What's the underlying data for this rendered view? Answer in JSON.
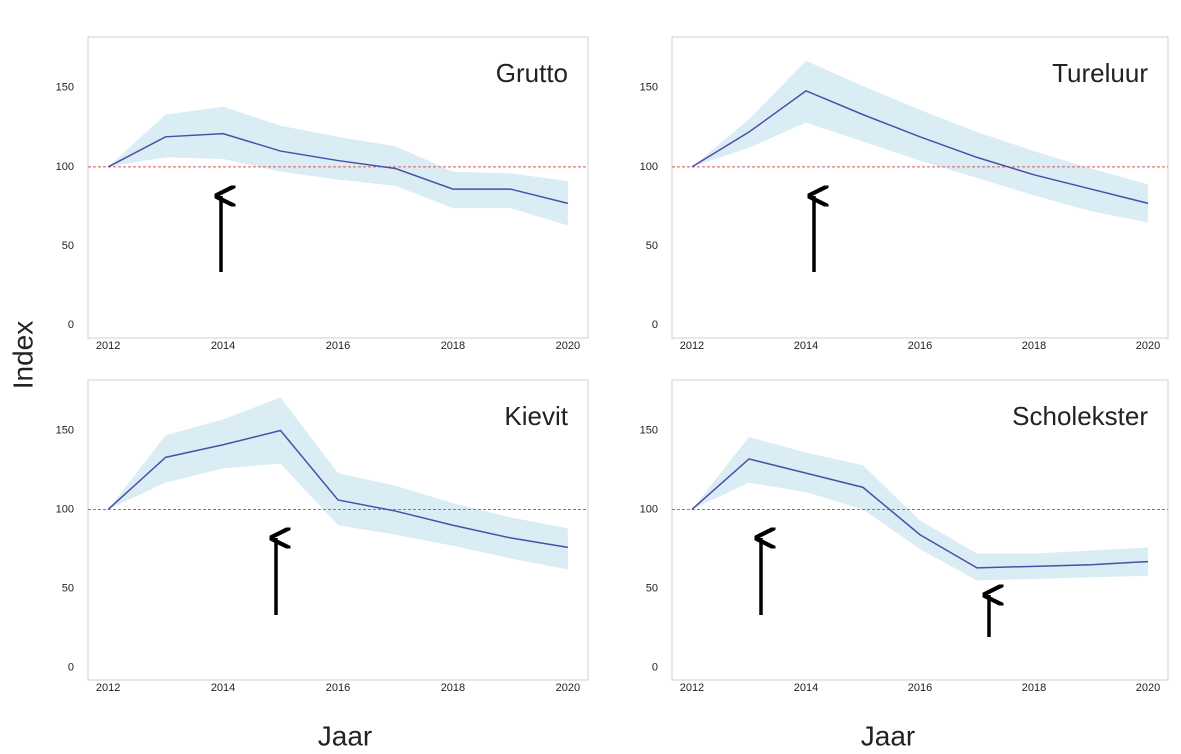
{
  "ylabel": "Index",
  "chart_data": [
    {
      "type": "line",
      "title": "Grutto",
      "x": [
        2012,
        2013,
        2014,
        2015,
        2016,
        2017,
        2018,
        2019,
        2020
      ],
      "values": [
        100,
        119,
        121,
        110,
        104,
        99,
        86,
        86,
        77
      ],
      "upper": [
        100,
        133,
        138,
        126,
        119,
        113,
        97,
        96,
        91
      ],
      "lower": [
        100,
        106,
        105,
        97,
        92,
        88,
        74,
        74,
        63
      ],
      "color": "#4b4fa8",
      "band_color": "#daedf5",
      "reference_line": 100,
      "reference_color": "#e05555",
      "xlim": [
        2011.65,
        2020.35
      ],
      "ylim": [
        -8,
        182
      ],
      "xticks": [
        2012,
        2014,
        2016,
        2018,
        2020
      ],
      "yticks": [
        0,
        50,
        100,
        150
      ]
    },
    {
      "type": "line",
      "title": "Tureluur",
      "x": [
        2012,
        2013,
        2014,
        2015,
        2016,
        2017,
        2018,
        2019,
        2020
      ],
      "values": [
        100,
        122,
        148,
        133,
        119,
        106,
        95,
        86,
        77
      ],
      "upper": [
        100,
        130,
        167,
        151,
        136,
        122,
        110,
        99,
        89
      ],
      "lower": [
        100,
        112,
        128,
        116,
        104,
        93,
        82,
        72,
        65
      ],
      "color": "#4b4fa8",
      "band_color": "#daedf5",
      "reference_line": 100,
      "reference_color": "#e05555",
      "xlim": [
        2011.65,
        2020.35
      ],
      "ylim": [
        -8,
        182
      ],
      "xticks": [
        2012,
        2014,
        2016,
        2018,
        2020
      ],
      "yticks": [
        0,
        50,
        100,
        150
      ]
    },
    {
      "type": "line",
      "title": "Kievit",
      "xlabel": "Jaar",
      "x": [
        2012,
        2013,
        2014,
        2015,
        2016,
        2017,
        2018,
        2019,
        2020
      ],
      "values": [
        100,
        133,
        141,
        150,
        106,
        99,
        90,
        82,
        76
      ],
      "upper": [
        100,
        147,
        157,
        171,
        123,
        115,
        104,
        95,
        88
      ],
      "lower": [
        100,
        117,
        126,
        129,
        90,
        84,
        77,
        69,
        62
      ],
      "color": "#4b4fa8",
      "band_color": "#daedf5",
      "reference_line": 100,
      "reference_color": "#e05555",
      "xlim": [
        2011.65,
        2020.35
      ],
      "ylim": [
        -8,
        182
      ],
      "xticks": [
        2012,
        2014,
        2016,
        2018,
        2020
      ],
      "yticks": [
        0,
        50,
        100,
        150
      ]
    },
    {
      "type": "line",
      "title": "Scholekster",
      "xlabel": "Jaar",
      "x": [
        2012,
        2013,
        2014,
        2015,
        2016,
        2017,
        2018,
        2019,
        2020
      ],
      "values": [
        100,
        132,
        123,
        114,
        84,
        63,
        64,
        65,
        67
      ],
      "upper": [
        100,
        146,
        136,
        128,
        93,
        72,
        72,
        74,
        76
      ],
      "lower": [
        100,
        117,
        111,
        100,
        75,
        55,
        56,
        57,
        58
      ],
      "color": "#4b4fa8",
      "band_color": "#daedf5",
      "reference_line": 100,
      "reference_color": "#e05555",
      "xlim": [
        2011.65,
        2020.35
      ],
      "ylim": [
        -8,
        182
      ],
      "xticks": [
        2012,
        2014,
        2016,
        2018,
        2020
      ],
      "yticks": [
        0,
        50,
        100,
        150
      ]
    }
  ]
}
